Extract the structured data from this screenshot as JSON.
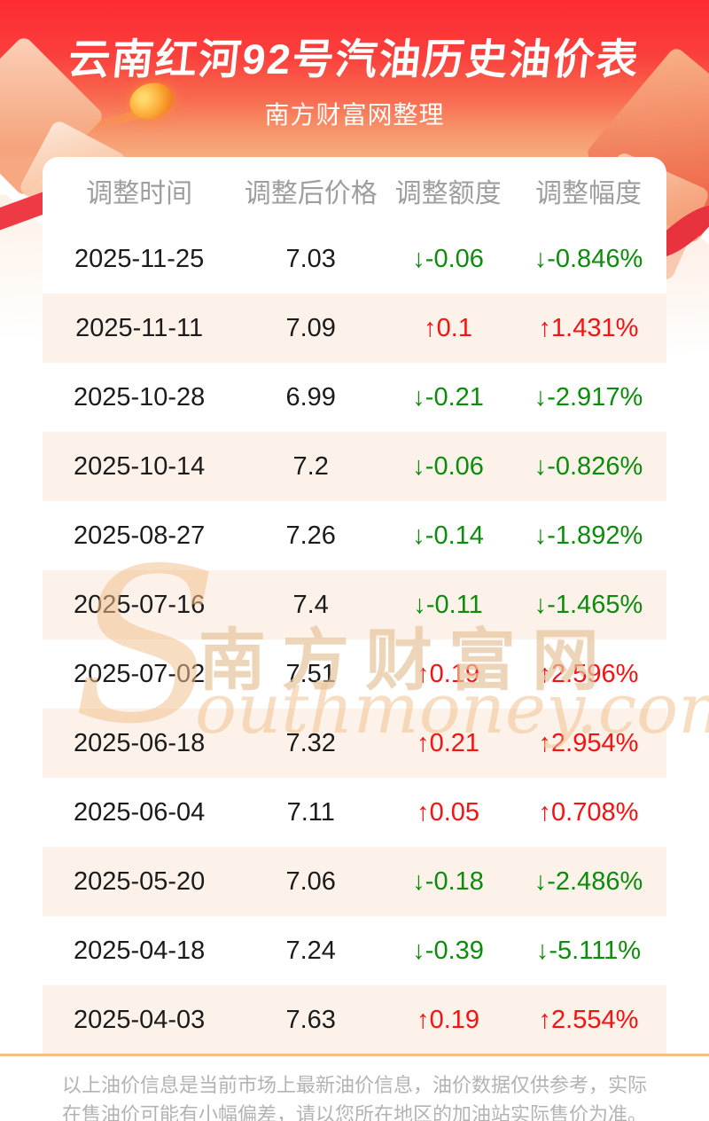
{
  "header": {
    "title": "云南红河92号汽油历史油价表",
    "subtitle": "南方财富网整理"
  },
  "table": {
    "columns": [
      "调整时间",
      "调整后价格",
      "调整额度",
      "调整幅度"
    ],
    "rows": [
      {
        "date": "2025-11-25",
        "price": "7.03",
        "amount": "↓-0.06",
        "rate": "↓-0.846%",
        "trend": "down"
      },
      {
        "date": "2025-11-11",
        "price": "7.09",
        "amount": "↑0.1",
        "rate": "↑1.431%",
        "trend": "up"
      },
      {
        "date": "2025-10-28",
        "price": "6.99",
        "amount": "↓-0.21",
        "rate": "↓-2.917%",
        "trend": "down"
      },
      {
        "date": "2025-10-14",
        "price": "7.2",
        "amount": "↓-0.06",
        "rate": "↓-0.826%",
        "trend": "down"
      },
      {
        "date": "2025-08-27",
        "price": "7.26",
        "amount": "↓-0.14",
        "rate": "↓-1.892%",
        "trend": "down"
      },
      {
        "date": "2025-07-16",
        "price": "7.4",
        "amount": "↓-0.11",
        "rate": "↓-1.465%",
        "trend": "down"
      },
      {
        "date": "2025-07-02",
        "price": "7.51",
        "amount": "↑0.19",
        "rate": "↑2.596%",
        "trend": "up"
      },
      {
        "date": "2025-06-18",
        "price": "7.32",
        "amount": "↑0.21",
        "rate": "↑2.954%",
        "trend": "up"
      },
      {
        "date": "2025-06-04",
        "price": "7.11",
        "amount": "↑0.05",
        "rate": "↑0.708%",
        "trend": "up"
      },
      {
        "date": "2025-05-20",
        "price": "7.06",
        "amount": "↓-0.18",
        "rate": "↓-2.486%",
        "trend": "down"
      },
      {
        "date": "2025-04-18",
        "price": "7.24",
        "amount": "↓-0.39",
        "rate": "↓-5.111%",
        "trend": "down"
      },
      {
        "date": "2025-04-03",
        "price": "7.63",
        "amount": "↑0.19",
        "rate": "↑2.554%",
        "trend": "up"
      }
    ]
  },
  "watermark": {
    "initial": "S",
    "brand_cn": "南方财富网",
    "brand_en": "outhmoney.com"
  },
  "footer": {
    "disclaimer": "以上油价信息是当前市场上最新油价信息，油价数据仅供参考，实际在售油价可能有小幅偏差，请以您所在地区的加油站实际售价为准。"
  },
  "colors": {
    "up_red": "#f71212",
    "down_green": "#0b8c0b",
    "header_red_top": "#fd2b33",
    "header_peach_bottom": "#f6ad7e",
    "row_alt_pink": "#fcf2ea",
    "divider_orange": "#f6bd85"
  }
}
